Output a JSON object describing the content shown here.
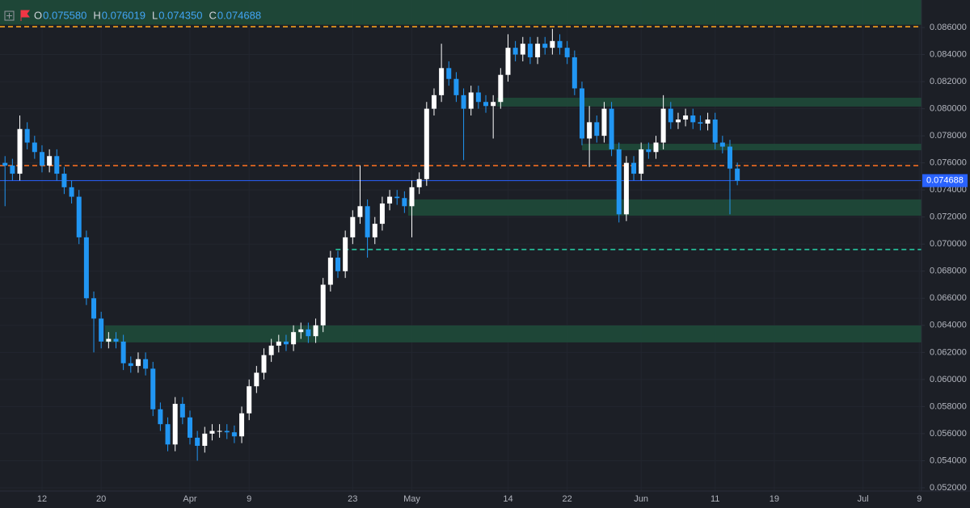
{
  "chart_data": {
    "type": "candlestick",
    "legend": [
      {
        "label": "O",
        "value": "0.075580"
      },
      {
        "label": "H",
        "value": "0.076019"
      },
      {
        "label": "L",
        "value": "0.074350"
      },
      {
        "label": "C",
        "value": "0.074688"
      }
    ],
    "last_price_label": "0.074688",
    "up_color": "#ffffff",
    "down_color": "#2196f3",
    "xlim": [
      -25.68,
      98.9
    ],
    "xticks": [
      {
        "value": -20,
        "label": "12"
      },
      {
        "value": -12,
        "label": "20"
      },
      {
        "value": 0,
        "label": "Apr"
      },
      {
        "value": 8,
        "label": "9"
      },
      {
        "value": 22,
        "label": "23"
      },
      {
        "value": 30,
        "label": "May"
      },
      {
        "value": 43,
        "label": "14"
      },
      {
        "value": 51,
        "label": "22"
      },
      {
        "value": 61,
        "label": "Jun"
      },
      {
        "value": 71,
        "label": "11"
      },
      {
        "value": 79,
        "label": "19"
      },
      {
        "value": 91,
        "label": "Jul"
      },
      {
        "value": 98.6,
        "label": "9"
      }
    ],
    "ylim": [
      0.05176,
      0.08803
    ],
    "yticks": [
      {
        "value": 0.052,
        "label": "0.052000"
      },
      {
        "value": 0.054,
        "label": "0.054000"
      },
      {
        "value": 0.056,
        "label": "0.056000"
      },
      {
        "value": 0.058,
        "label": "0.058000"
      },
      {
        "value": 0.06,
        "label": "0.060000"
      },
      {
        "value": 0.062,
        "label": "0.062000"
      },
      {
        "value": 0.064,
        "label": "0.064000"
      },
      {
        "value": 0.066,
        "label": "0.066000"
      },
      {
        "value": 0.068,
        "label": "0.068000"
      },
      {
        "value": 0.07,
        "label": "0.070000"
      },
      {
        "value": 0.072,
        "label": "0.072000"
      },
      {
        "value": 0.074,
        "label": "0.074000"
      },
      {
        "value": 0.076,
        "label": "0.076000"
      },
      {
        "value": 0.078,
        "label": "0.078000"
      },
      {
        "value": 0.08,
        "label": "0.080000"
      },
      {
        "value": 0.082,
        "label": "0.082000"
      },
      {
        "value": 0.084,
        "label": "0.084000"
      },
      {
        "value": 0.086,
        "label": "0.086000"
      }
    ],
    "zones": [
      {
        "from": -25.68,
        "top": 0.08803,
        "bottom": 0.0862,
        "color": "#1f4a3a"
      },
      {
        "from": 41.5,
        "top": 0.08081,
        "bottom": 0.08016,
        "color": "#1f4a3a"
      },
      {
        "from": 53,
        "top": 0.07741,
        "bottom": 0.07693,
        "color": "#1f4a3a"
      },
      {
        "from": 29.5,
        "top": 0.0733,
        "bottom": 0.0721,
        "color": "#1f4a3a"
      },
      {
        "from": -11.5,
        "top": 0.06399,
        "bottom": 0.06274,
        "color": "#1f4a3a"
      }
    ],
    "levels": [
      {
        "from": -25.68,
        "value": 0.08606,
        "color": "#f7a21b"
      },
      {
        "from": -25.68,
        "value": 0.0758,
        "color": "#f26d21"
      },
      {
        "from": 19.7,
        "value": 0.0696,
        "color": "#26c6a0"
      }
    ],
    "x": [
      -25,
      -24,
      -23,
      -22,
      -21,
      -20,
      -19,
      -18,
      -17,
      -16,
      -15,
      -14,
      -13,
      -12,
      -11,
      -10,
      -9,
      -8,
      -7,
      -6,
      -5,
      -4,
      -3,
      -2,
      -1,
      0,
      1,
      2,
      3,
      4,
      5,
      6,
      7,
      8,
      9,
      10,
      11,
      12,
      13,
      14,
      15,
      16,
      17,
      18,
      19,
      20,
      21,
      22,
      23,
      24,
      25,
      26,
      27,
      28,
      29,
      30,
      31,
      32,
      33,
      34,
      35,
      36,
      37,
      38,
      39,
      40,
      41,
      42,
      43,
      44,
      45,
      46,
      47,
      48,
      49,
      50,
      51,
      52,
      53,
      54,
      55,
      56,
      57,
      58,
      59,
      60,
      61,
      62,
      63,
      64,
      65,
      66,
      67,
      68,
      69,
      70,
      71,
      72,
      73,
      74
    ],
    "open": [
      0.076,
      0.0758,
      0.0752,
      0.0785,
      0.0775,
      0.0768,
      0.0758,
      0.0765,
      0.0752,
      0.0742,
      0.0735,
      0.0705,
      0.066,
      0.0645,
      0.0628,
      0.063,
      0.0628,
      0.0612,
      0.061,
      0.0615,
      0.0608,
      0.0578,
      0.0567,
      0.0552,
      0.0582,
      0.0572,
      0.0557,
      0.0551,
      0.056,
      0.0562,
      0.0562,
      0.0561,
      0.0558,
      0.0575,
      0.0595,
      0.0605,
      0.0618,
      0.0625,
      0.0628,
      0.0626,
      0.0635,
      0.0637,
      0.0632,
      0.064,
      0.067,
      0.069,
      0.068,
      0.0705,
      0.072,
      0.0728,
      0.0705,
      0.0715,
      0.073,
      0.0735,
      0.0734,
      0.0728,
      0.0742,
      0.0748,
      0.08,
      0.081,
      0.083,
      0.0822,
      0.081,
      0.08,
      0.0812,
      0.0805,
      0.0802,
      0.0805,
      0.0825,
      0.0845,
      0.084,
      0.0848,
      0.0838,
      0.0848,
      0.0845,
      0.085,
      0.0845,
      0.0838,
      0.0815,
      0.0778,
      0.079,
      0.078,
      0.08,
      0.077,
      0.0722,
      0.076,
      0.0752,
      0.077,
      0.0768,
      0.0775,
      0.08,
      0.079,
      0.0792,
      0.0795,
      0.079,
      0.0789,
      0.0792,
      0.0775,
      0.0772,
      0.07558
    ],
    "high": [
      0.0765,
      0.0763,
      0.0795,
      0.079,
      0.078,
      0.0773,
      0.077,
      0.077,
      0.0757,
      0.0747,
      0.074,
      0.071,
      0.0665,
      0.065,
      0.0635,
      0.0635,
      0.0633,
      0.0617,
      0.062,
      0.062,
      0.0613,
      0.0583,
      0.0572,
      0.0587,
      0.0587,
      0.0577,
      0.0562,
      0.0565,
      0.0567,
      0.0567,
      0.0567,
      0.0566,
      0.058,
      0.06,
      0.061,
      0.0623,
      0.063,
      0.0633,
      0.0633,
      0.064,
      0.0642,
      0.0642,
      0.0645,
      0.0675,
      0.0695,
      0.0695,
      0.071,
      0.0725,
      0.0758,
      0.0733,
      0.072,
      0.0735,
      0.074,
      0.074,
      0.0739,
      0.0747,
      0.0753,
      0.0805,
      0.0815,
      0.0848,
      0.0835,
      0.0827,
      0.0815,
      0.0817,
      0.0817,
      0.081,
      0.081,
      0.083,
      0.0855,
      0.085,
      0.0853,
      0.0853,
      0.0853,
      0.0853,
      0.0859,
      0.0855,
      0.085,
      0.0843,
      0.082,
      0.0802,
      0.0795,
      0.0805,
      0.0805,
      0.0775,
      0.0765,
      0.0765,
      0.0775,
      0.0775,
      0.078,
      0.081,
      0.0805,
      0.0797,
      0.08,
      0.08,
      0.0795,
      0.0797,
      0.0797,
      0.078,
      0.0777,
      0.076019
    ],
    "low": [
      0.0728,
      0.0747,
      0.0747,
      0.077,
      0.0763,
      0.0753,
      0.0753,
      0.0747,
      0.0737,
      0.073,
      0.07,
      0.0655,
      0.062,
      0.0623,
      0.0623,
      0.0623,
      0.0607,
      0.0605,
      0.0605,
      0.0603,
      0.0573,
      0.0562,
      0.0547,
      0.0547,
      0.0567,
      0.0552,
      0.054,
      0.0546,
      0.0555,
      0.0557,
      0.0556,
      0.0553,
      0.0553,
      0.057,
      0.059,
      0.06,
      0.0613,
      0.062,
      0.0621,
      0.0621,
      0.063,
      0.0627,
      0.0627,
      0.0635,
      0.0665,
      0.0675,
      0.0675,
      0.07,
      0.0715,
      0.069,
      0.07,
      0.071,
      0.0725,
      0.0729,
      0.0723,
      0.0705,
      0.0737,
      0.0743,
      0.0795,
      0.0805,
      0.0817,
      0.0805,
      0.0762,
      0.0795,
      0.08,
      0.0797,
      0.0778,
      0.08,
      0.082,
      0.0835,
      0.0835,
      0.0833,
      0.0833,
      0.084,
      0.084,
      0.084,
      0.0833,
      0.081,
      0.0773,
      0.0757,
      0.0775,
      0.0775,
      0.0765,
      0.0716,
      0.0717,
      0.0747,
      0.0747,
      0.0763,
      0.0763,
      0.077,
      0.0785,
      0.0785,
      0.0787,
      0.0785,
      0.0784,
      0.0784,
      0.077,
      0.0767,
      0.0722,
      0.07435
    ],
    "close": [
      0.0758,
      0.0752,
      0.0785,
      0.0775,
      0.0768,
      0.0758,
      0.0765,
      0.0752,
      0.0742,
      0.0735,
      0.0705,
      0.066,
      0.0645,
      0.0628,
      0.063,
      0.0628,
      0.0612,
      0.061,
      0.0615,
      0.0608,
      0.0578,
      0.0567,
      0.0552,
      0.0582,
      0.0572,
      0.0557,
      0.0551,
      0.056,
      0.0562,
      0.0562,
      0.0561,
      0.0558,
      0.0575,
      0.0595,
      0.0605,
      0.0618,
      0.0625,
      0.0628,
      0.0626,
      0.0635,
      0.0637,
      0.0632,
      0.064,
      0.067,
      0.069,
      0.068,
      0.0705,
      0.072,
      0.0728,
      0.0705,
      0.0715,
      0.073,
      0.0735,
      0.0734,
      0.0728,
      0.0742,
      0.0748,
      0.08,
      0.081,
      0.083,
      0.0822,
      0.081,
      0.08,
      0.0812,
      0.0805,
      0.0802,
      0.0805,
      0.0825,
      0.0845,
      0.084,
      0.0848,
      0.0838,
      0.0848,
      0.0845,
      0.085,
      0.0845,
      0.0838,
      0.0815,
      0.0778,
      0.079,
      0.078,
      0.08,
      0.077,
      0.0722,
      0.076,
      0.0752,
      0.077,
      0.0768,
      0.0775,
      0.08,
      0.079,
      0.0792,
      0.0795,
      0.079,
      0.0789,
      0.0792,
      0.0775,
      0.0772,
      0.07558,
      0.074688
    ]
  }
}
